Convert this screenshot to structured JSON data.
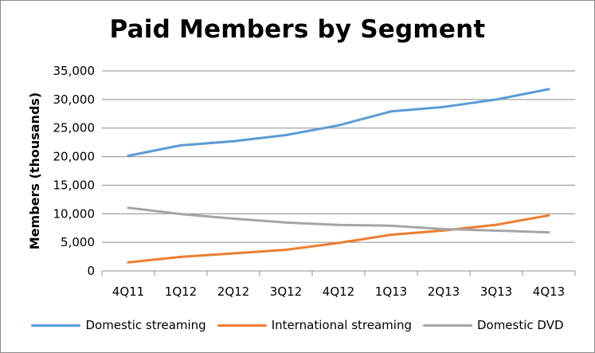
{
  "chart_data": {
    "type": "line",
    "title": "Paid Members by Segment",
    "xlabel": "",
    "ylabel": "Members (thousands)",
    "ylim": [
      0,
      35000
    ],
    "yticks": [
      "0",
      "5,000",
      "10,000",
      "15,000",
      "20,000",
      "25,000",
      "30,000",
      "35,000"
    ],
    "categories": [
      "4Q11",
      "1Q12",
      "2Q12",
      "3Q12",
      "4Q12",
      "1Q13",
      "2Q13",
      "3Q13",
      "4Q13"
    ],
    "grid": true,
    "legend_position": "bottom",
    "series": [
      {
        "name": "Domestic streaming",
        "color": "#5b9bd5",
        "values": [
          20150,
          21980,
          22690,
          23780,
          25470,
          27910,
          28700,
          30000,
          31800
        ]
      },
      {
        "name": "International streaming",
        "color": "#ed7d31",
        "values": [
          1500,
          2460,
          3070,
          3690,
          4890,
          6330,
          7070,
          8080,
          9720
        ]
      },
      {
        "name": "Domestic DVD",
        "color": "#a5a5a5",
        "values": [
          11040,
          9960,
          9150,
          8470,
          8050,
          7900,
          7320,
          7050,
          6750
        ]
      }
    ]
  }
}
